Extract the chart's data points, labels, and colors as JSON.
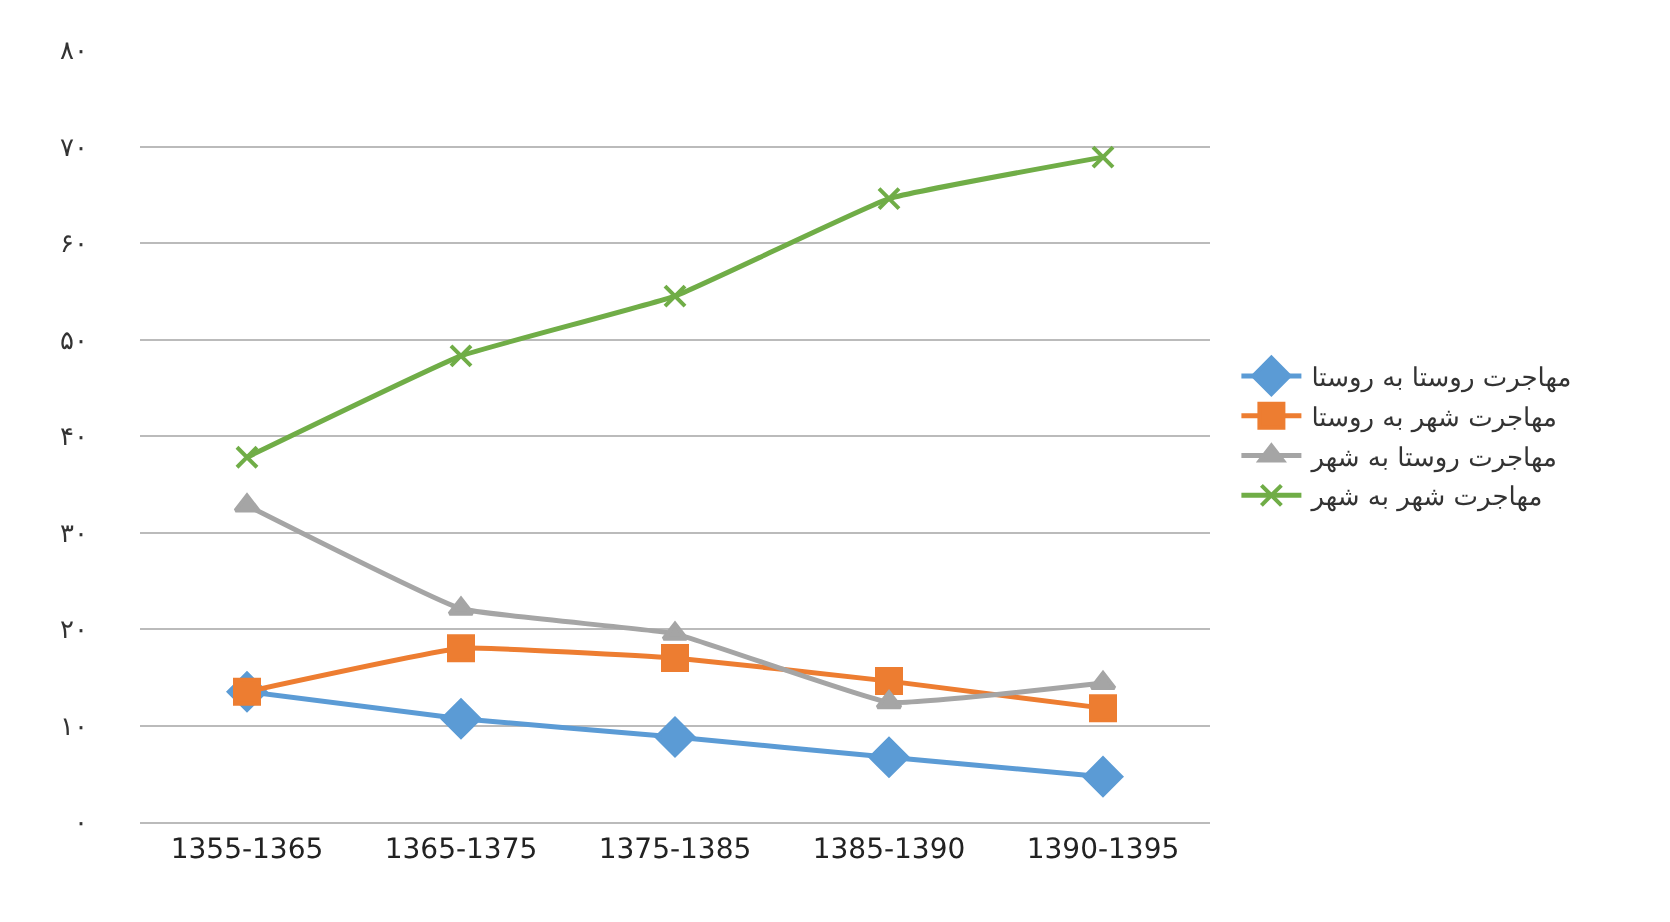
{
  "chart_data": {
    "type": "line",
    "categories": [
      "1355-1365",
      "1365-1375",
      "1375-1385",
      "1385-1390",
      "1390-1395"
    ],
    "series": [
      {
        "name": "مهاجرت روستا به روستا",
        "color": "#5b9bd5",
        "marker": "diamond",
        "values": [
          13.5,
          10.7,
          8.8,
          6.7,
          4.7
        ]
      },
      {
        "name": "مهاجرت شهر به روستا",
        "color": "#ed7d31",
        "marker": "square",
        "values": [
          13.5,
          18,
          17,
          14.6,
          11.8
        ]
      },
      {
        "name": "مهاجرت روستا به شهر",
        "color": "#a5a5a5",
        "marker": "triangle",
        "values": [
          32.8,
          22.1,
          19.5,
          12.4,
          14.4
        ]
      },
      {
        "name": "مهاجرت شهر به شهر",
        "color": "#70ad47",
        "marker": "cross",
        "values": [
          37.8,
          48.3,
          54.5,
          64.6,
          68.9
        ]
      }
    ],
    "ylim": [
      0,
      80
    ],
    "yticks": [
      {
        "value": 0,
        "label": "۰"
      },
      {
        "value": 10,
        "label": "۱۰"
      },
      {
        "value": 20,
        "label": "۲۰"
      },
      {
        "value": 30,
        "label": "۳۰"
      },
      {
        "value": 40,
        "label": "۴۰"
      },
      {
        "value": 50,
        "label": "۵۰"
      },
      {
        "value": 60,
        "label": "۶۰"
      },
      {
        "value": 70,
        "label": "۷۰"
      },
      {
        "value": 80,
        "label": "۸۰"
      }
    ],
    "grid": "y",
    "legend": "right",
    "line_style": "solid"
  }
}
